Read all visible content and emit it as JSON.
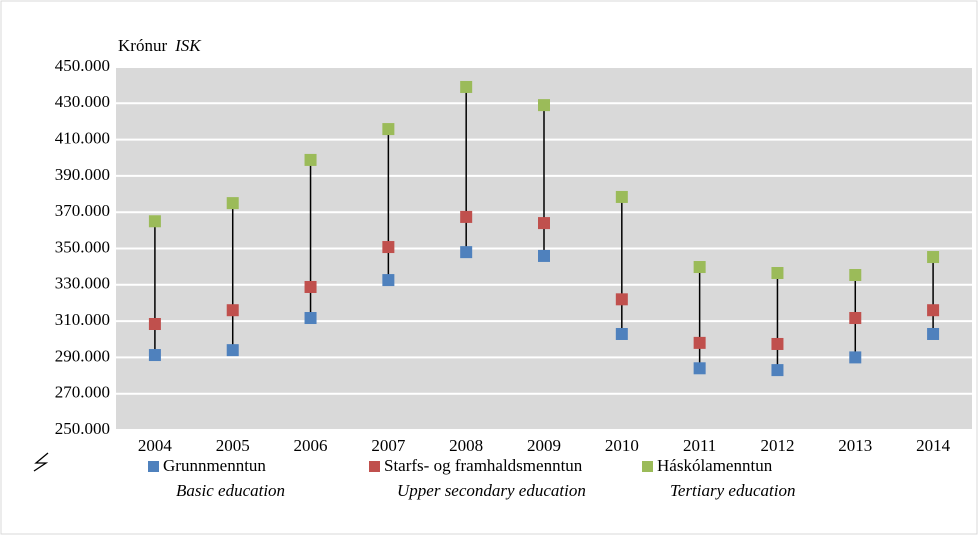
{
  "chart_data": {
    "type": "highlow",
    "y_label": "Krónur",
    "y_label_en": "ISK",
    "categories": [
      "2004",
      "2005",
      "2006",
      "2007",
      "2008",
      "2009",
      "2010",
      "2011",
      "2012",
      "2013",
      "2014"
    ],
    "series": [
      {
        "name": "Grunnmenntun",
        "name_en": "Basic education",
        "color": "#4f81bd",
        "values": [
          291300,
          294000,
          311700,
          332600,
          348000,
          345900,
          302900,
          284000,
          283000,
          290000,
          302900
        ]
      },
      {
        "name": "Starfs- og framhaldsmenntun",
        "name_en": "Upper secondary education",
        "color": "#c0504d",
        "values": [
          308400,
          316000,
          328800,
          350800,
          367400,
          364000,
          322000,
          298000,
          297400,
          311700,
          316000
        ]
      },
      {
        "name": "Háskólamenntun",
        "name_en": "Tertiary education",
        "color": "#9bbb59",
        "values": [
          365000,
          375000,
          398800,
          415800,
          439000,
          429000,
          378400,
          339800,
          336500,
          335400,
          345300
        ]
      }
    ],
    "ylim": [
      250000,
      450000
    ],
    "yticks": [
      {
        "value": 250000,
        "label": "250.000"
      },
      {
        "value": 270000,
        "label": "270.000"
      },
      {
        "value": 290000,
        "label": "290.000"
      },
      {
        "value": 310000,
        "label": "310.000"
      },
      {
        "value": 330000,
        "label": "330.000"
      },
      {
        "value": 350000,
        "label": "350.000"
      },
      {
        "value": 370000,
        "label": "370.000"
      },
      {
        "value": 390000,
        "label": "390.000"
      },
      {
        "value": 410000,
        "label": "410.000"
      },
      {
        "value": 430000,
        "label": "430.000"
      },
      {
        "value": 450000,
        "label": "450.000"
      }
    ],
    "grid": true
  }
}
